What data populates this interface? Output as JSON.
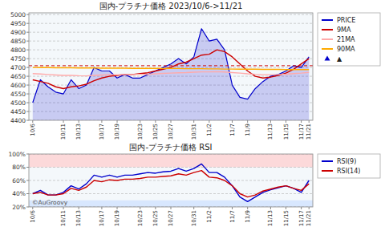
{
  "chart_data": [
    {
      "type": "line",
      "title": "国内-プラチナ価格 2023/10/6->11/21",
      "categories": [
        "10/6",
        null,
        null,
        null,
        "10/11",
        null,
        "10/13",
        null,
        null,
        "10/17",
        null,
        "10/19",
        null,
        null,
        "10/23",
        null,
        "10/25",
        null,
        "10/27",
        null,
        null,
        "10/31",
        null,
        "11/2",
        null,
        null,
        "11/7",
        null,
        "11/9",
        null,
        null,
        "11/13",
        null,
        "11/15",
        null,
        "11/17",
        "11/21"
      ],
      "series": [
        {
          "name": "PRICE",
          "type": "area",
          "color": "#0000cc",
          "values": [
            4500,
            4630,
            4590,
            4560,
            4550,
            4630,
            4580,
            4600,
            4700,
            4680,
            4680,
            4640,
            4660,
            4640,
            4640,
            4660,
            4680,
            4700,
            4720,
            4750,
            4720,
            4760,
            4920,
            4850,
            4860,
            4800,
            4600,
            4530,
            4520,
            4580,
            4620,
            4650,
            4660,
            4680,
            4710,
            4700,
            4760
          ]
        },
        {
          "name": "9MA",
          "color": "#cc0000",
          "values": [
            4630,
            4620,
            4610,
            4590,
            4580,
            4590,
            4595,
            4605,
            4625,
            4640,
            4650,
            4655,
            4660,
            4660,
            4665,
            4670,
            4680,
            4690,
            4700,
            4720,
            4730,
            4750,
            4770,
            4775,
            4800,
            4790,
            4760,
            4720,
            4680,
            4650,
            4640,
            4645,
            4655,
            4668,
            4690,
            4720,
            4750
          ]
        },
        {
          "name": "21MA",
          "color": "#ffaaaa",
          "values": [
            4665,
            4663,
            4660,
            4657,
            4655,
            4655,
            4653,
            4652,
            4655,
            4657,
            4658,
            4658,
            4660,
            4660,
            4661,
            4662,
            4664,
            4666,
            4668,
            4670,
            4671,
            4673,
            4675,
            4675,
            4676,
            4674,
            4671,
            4668,
            4664,
            4661,
            4659,
            4659,
            4660,
            4662,
            4665,
            4668,
            4672
          ]
        },
        {
          "name": "90MA",
          "color": "#ffaa00",
          "values": [
            4700,
            4699,
            4699,
            4698,
            4698,
            4698,
            4697,
            4697,
            4697,
            4696,
            4696,
            4696,
            4696,
            4695,
            4695,
            4695,
            4695,
            4694,
            4694,
            4694,
            4693,
            4693,
            4693,
            4692,
            4692,
            4691,
            4691,
            4690,
            4690,
            4690,
            4689,
            4689,
            4689,
            4688,
            4688,
            4688,
            4688
          ]
        },
        {
          "name": "▲",
          "type": "scatter",
          "color": "#0000cc",
          "marker": "triangle",
          "line_style": "none",
          "values": [
            null,
            null,
            null,
            null,
            null,
            null,
            null,
            null,
            null,
            null,
            null,
            null,
            null,
            null,
            null,
            null,
            null,
            null,
            null,
            null,
            null,
            null,
            null,
            null,
            null,
            null,
            null,
            null,
            null,
            null,
            null,
            null,
            null,
            null,
            null,
            null,
            null
          ]
        }
      ],
      "reference_lines": [
        {
          "value": 4710,
          "color": "#cc0000",
          "line_style": "dashed"
        }
      ],
      "ylim": [
        4400,
        5010
      ],
      "yticks": [
        4400,
        4450,
        4500,
        4550,
        4600,
        4650,
        4700,
        4750,
        4800,
        4850,
        4900,
        4950,
        5000
      ],
      "grid": true,
      "legend": "right"
    },
    {
      "type": "line",
      "title": "国内-プラチナ価格 RSI",
      "categories": [
        "10/6",
        null,
        null,
        null,
        "10/11",
        null,
        "10/13",
        null,
        null,
        "10/17",
        null,
        "10/19",
        null,
        null,
        "10/23",
        null,
        "10/25",
        null,
        "10/27",
        null,
        null,
        "10/31",
        null,
        "11/2",
        null,
        null,
        "11/7",
        null,
        "11/9",
        null,
        null,
        "11/13",
        null,
        "11/15",
        null,
        "11/17",
        "11/21"
      ],
      "series": [
        {
          "name": "RSI(9)",
          "color": "#0000cc",
          "values": [
            40,
            45,
            38,
            38,
            42,
            52,
            47,
            55,
            68,
            65,
            68,
            65,
            68,
            68,
            70,
            72,
            71,
            73,
            74,
            78,
            74,
            78,
            85,
            72,
            72,
            65,
            52,
            35,
            28,
            35,
            42,
            46,
            49,
            52,
            48,
            42,
            60
          ]
        },
        {
          "name": "RSI(14)",
          "color": "#cc0000",
          "values": [
            40,
            42,
            38,
            38,
            40,
            48,
            45,
            50,
            60,
            58,
            61,
            60,
            62,
            62,
            63,
            65,
            65,
            66,
            67,
            70,
            68,
            72,
            75,
            65,
            64,
            60,
            52,
            40,
            35,
            38,
            44,
            47,
            50,
            52,
            48,
            45,
            55
          ]
        }
      ],
      "bands": [
        {
          "from": 80,
          "to": 100,
          "color": "#ffcccc"
        },
        {
          "from": 20,
          "to": 30,
          "color": "#cce0ff"
        }
      ],
      "annotations": [
        {
          "text": "©AuGroovy"
        }
      ],
      "ylim": [
        20,
        100
      ],
      "yticks": [
        {
          "value": 20,
          "label": "20%"
        },
        {
          "value": 40,
          "label": "40%"
        },
        {
          "value": 60,
          "label": "60%"
        },
        {
          "value": 80,
          "label": "80%"
        },
        {
          "value": 100,
          "label": "100%"
        }
      ],
      "grid": true,
      "legend": "right"
    }
  ]
}
